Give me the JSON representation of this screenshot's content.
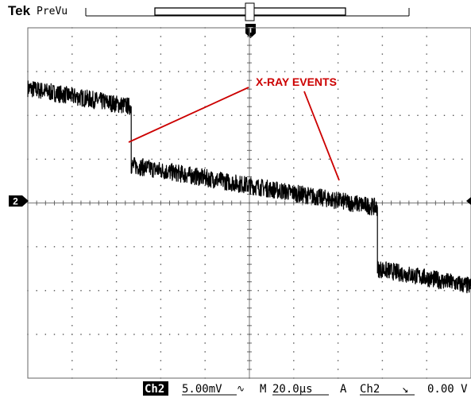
{
  "header": {
    "brand": "Tek",
    "mode": "PreVu",
    "trigger_marker": "T"
  },
  "channel_marker": "2",
  "annotation": {
    "text": "X-RAY EVENTS",
    "color": "#cc0000"
  },
  "status_bar": {
    "channel": "Ch2",
    "scale": "5.00mV",
    "coupling_symbol": "∿",
    "timebase_prefix": "M",
    "timebase": "20.0µs",
    "trigger_mode": "A",
    "trigger_source": "Ch2",
    "trigger_slope": "↘",
    "trigger_level": "0.00 V"
  },
  "chart_data": {
    "type": "line",
    "title": "",
    "xlabel": "",
    "ylabel": "",
    "x_unit": "µs",
    "y_unit": "mV",
    "xlim": [
      -100,
      80
    ],
    "ylim": [
      -20,
      20
    ],
    "grid": true,
    "series": [
      {
        "x": [
          -100,
          -58,
          -58,
          42,
          42,
          80
        ],
        "values": [
          13.1,
          11.0,
          4.3,
          -0.5,
          -7.5,
          -9.5
        ],
        "noise_amplitude": 1.0
      }
    ]
  }
}
